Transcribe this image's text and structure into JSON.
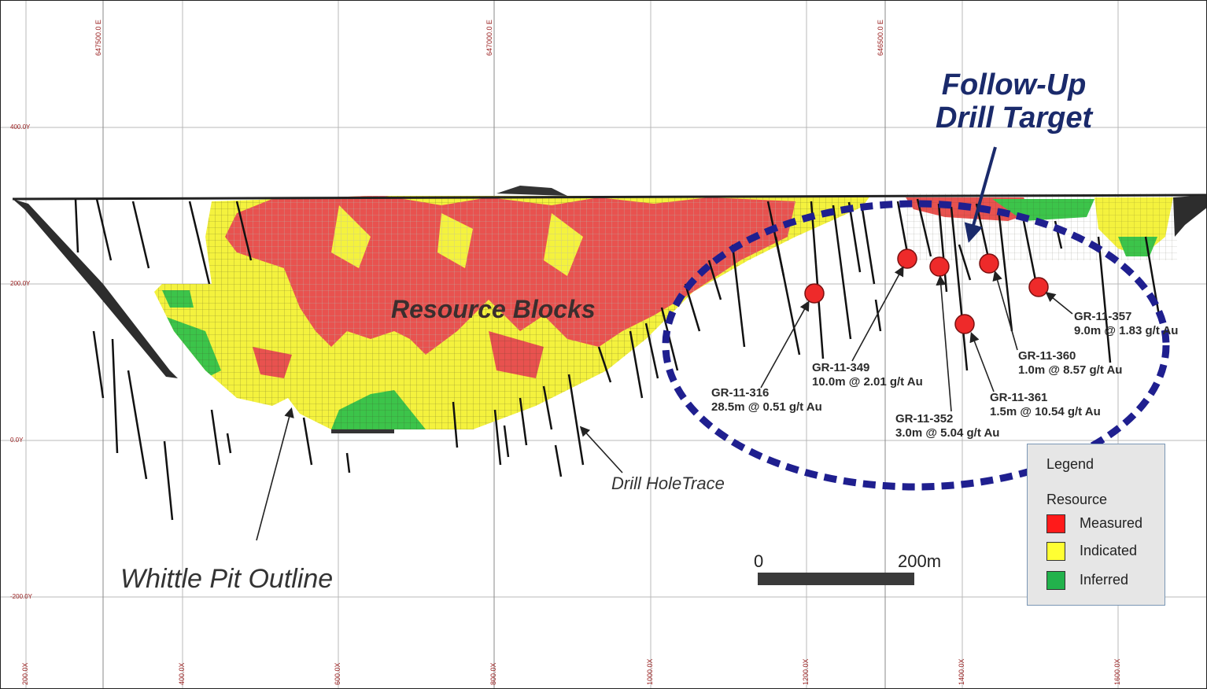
{
  "colors": {
    "measured": "#e8524f",
    "indicated": "#f4f23e",
    "inferred": "#3cc44a",
    "ellipse": "#1f1f8f",
    "title": "#1a2a6b",
    "grid_label": "#9a2020"
  },
  "top_grid_labels": [
    "647500.0 E",
    "647000.0 E",
    "646500.0 E"
  ],
  "left_grid_labels": [
    "400.0Y",
    "200.0Y",
    "0.0Y",
    "-200.0Y"
  ],
  "bottom_grid_labels": [
    "200.0X",
    "400.0X",
    "600.0X",
    "800.0X",
    "1000.0X",
    "1200.0X",
    "1400.0X",
    "1600.0X"
  ],
  "labels": {
    "resource_blocks": "Resource Blocks",
    "whittle_pit": "Whittle Pit Outline",
    "drill_trace": "Drill HoleTrace",
    "follow_up_line1": "Follow-Up",
    "follow_up_line2": "Drill Target"
  },
  "intercepts": [
    {
      "hole": "GR-11-316",
      "result": "28.5m @ 0.51 g/t Au"
    },
    {
      "hole": "GR-11-349",
      "result": "10.0m @ 2.01 g/t Au"
    },
    {
      "hole": "GR-11-352",
      "result": "3.0m @ 5.04 g/t Au"
    },
    {
      "hole": "GR-11-361",
      "result": "1.5m @ 10.54 g/t Au"
    },
    {
      "hole": "GR-11-360",
      "result": "1.0m @ 8.57 g/t Au"
    },
    {
      "hole": "GR-11-357",
      "result": "9.0m @ 1.83 g/t Au"
    }
  ],
  "legend": {
    "title": "Legend",
    "subtitle": "Resource",
    "items": [
      {
        "label": "Measured",
        "color": "#ff1a1a"
      },
      {
        "label": "Indicated",
        "color": "#ffff33"
      },
      {
        "label": "Inferred",
        "color": "#22b24c"
      }
    ]
  },
  "scale": {
    "start": "0",
    "end": "200m"
  }
}
